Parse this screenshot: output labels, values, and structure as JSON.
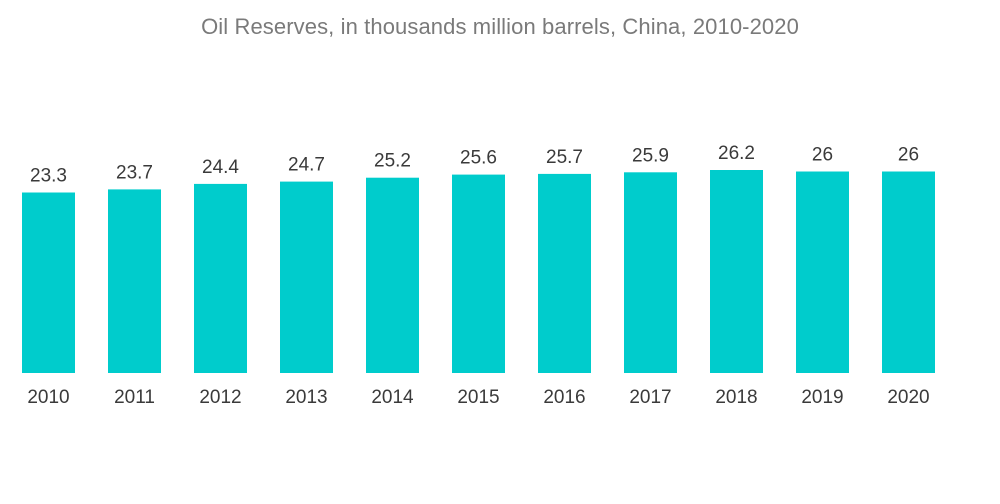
{
  "chart_data": {
    "type": "bar",
    "title": "Oil Reserves, in thousands million barrels, China, 2010-2020",
    "xlabel": "",
    "ylabel": "",
    "categories": [
      "2010",
      "2011",
      "2012",
      "2013",
      "2014",
      "2015",
      "2016",
      "2017",
      "2018",
      "2019",
      "2020"
    ],
    "values": [
      23.3,
      23.7,
      24.4,
      24.7,
      25.2,
      25.6,
      25.7,
      25.9,
      26.2,
      26,
      26
    ],
    "data_labels": [
      "23.3",
      "23.7",
      "24.4",
      "24.7",
      "25.2",
      "25.6",
      "25.7",
      "25.9",
      "26.2",
      "26",
      "26"
    ],
    "ylim": [
      0,
      26.2
    ],
    "grid": false,
    "legend": "none",
    "bar_color": "#00CCCC"
  }
}
